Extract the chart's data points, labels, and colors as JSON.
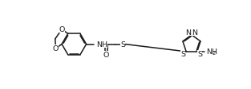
{
  "bg_color": "#ffffff",
  "line_color": "#1a1a1a",
  "line_width": 1.1,
  "font_size": 6.8,
  "fig_width": 3.13,
  "fig_height": 1.13,
  "xlim": [
    0.0,
    10.2
  ],
  "ylim": [
    1.0,
    3.2
  ]
}
